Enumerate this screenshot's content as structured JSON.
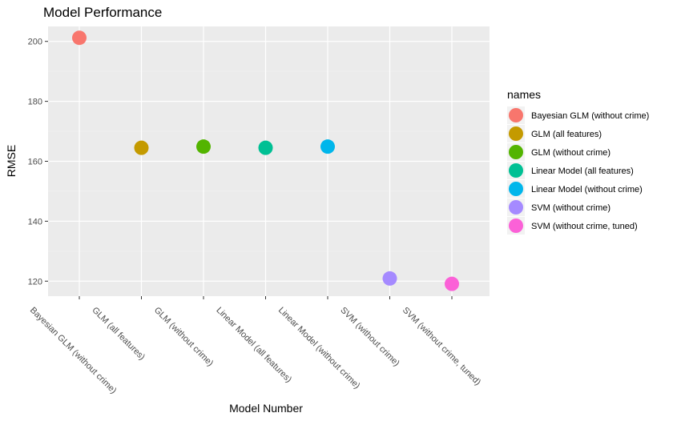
{
  "chart_data": {
    "type": "scatter",
    "title": "Model Performance",
    "xlabel": "Model Number",
    "ylabel": "RMSE",
    "ylim": [
      115,
      205
    ],
    "yticks": [
      120,
      140,
      160,
      180,
      200
    ],
    "grid": true,
    "legend_placement": "right",
    "legend_title": "names",
    "categories": [
      "Bayesian GLM (without crime)",
      "GLM (all features)",
      "GLM (without crime)",
      "Linear Model (all features)",
      "Linear Model (without crime)",
      "SVM (without crime)",
      "SVM (without crime, tuned)"
    ],
    "series": [
      {
        "name": "Bayesian GLM (without crime)",
        "x": "Bayesian GLM (without crime)",
        "y": 201.2,
        "color": "#F8766D"
      },
      {
        "name": "GLM (all features)",
        "x": "GLM (all features)",
        "y": 164.5,
        "color": "#C49A00"
      },
      {
        "name": "GLM (without crime)",
        "x": "GLM (without crime)",
        "y": 164.9,
        "color": "#53B400"
      },
      {
        "name": "Linear Model (all features)",
        "x": "Linear Model (all features)",
        "y": 164.5,
        "color": "#00C094"
      },
      {
        "name": "Linear Model (without crime)",
        "x": "Linear Model (without crime)",
        "y": 164.9,
        "color": "#00B6EB"
      },
      {
        "name": "SVM (without crime)",
        "x": "SVM (without crime)",
        "y": 120.9,
        "color": "#A58AFF"
      },
      {
        "name": "SVM (without crime, tuned)",
        "x": "SVM (without crime, tuned)",
        "y": 119.1,
        "color": "#FB61D7"
      }
    ]
  }
}
